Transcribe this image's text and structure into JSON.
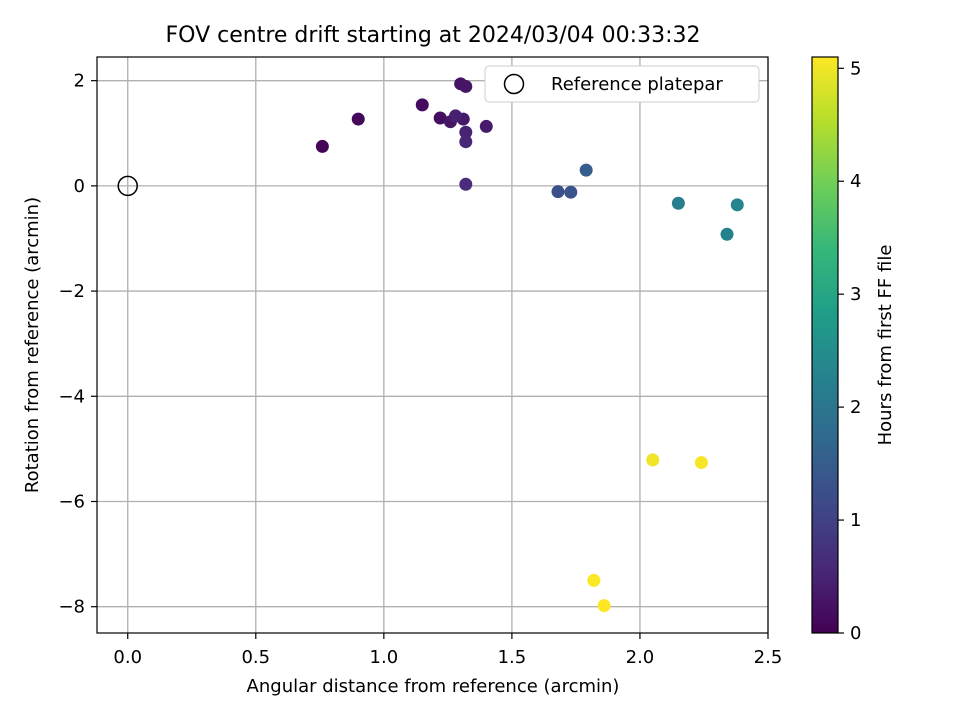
{
  "chart_data": {
    "type": "scatter",
    "title": "FOV centre drift starting at 2024/03/04 00:33:32",
    "xlabel": "Angular distance from reference (arcmin)",
    "ylabel": "Rotation from reference (arcmin)",
    "xlim": [
      -0.12,
      2.5
    ],
    "ylim": [
      -8.5,
      2.45
    ],
    "xticks": [
      0.0,
      0.5,
      1.0,
      1.5,
      2.0,
      2.5
    ],
    "xtick_labels": [
      "0.0",
      "0.5",
      "1.0",
      "1.5",
      "2.0",
      "2.5"
    ],
    "yticks": [
      2,
      0,
      -2,
      -4,
      -6,
      -8
    ],
    "ytick_labels": [
      "2",
      "0",
      "−2",
      "−4",
      "−6",
      "−8"
    ],
    "grid": true,
    "legend": {
      "placement": "top-right",
      "entries": [
        {
          "label": "Reference platepar",
          "marker": "open-circle"
        }
      ]
    },
    "reference_point": {
      "x": 0.0,
      "y": 0.0
    },
    "colorbar": {
      "label": "Hours from first FF file",
      "colormap": "viridis",
      "range": [
        0,
        5.1
      ],
      "ticks": [
        0,
        1,
        2,
        3,
        4,
        5
      ],
      "tick_labels": [
        "0",
        "1",
        "2",
        "3",
        "4",
        "5"
      ]
    },
    "points": [
      {
        "x": 0.76,
        "y": 0.75,
        "hours": 0.05
      },
      {
        "x": 0.9,
        "y": 1.27,
        "hours": 0.1
      },
      {
        "x": 1.15,
        "y": 1.54,
        "hours": 0.15
      },
      {
        "x": 1.22,
        "y": 1.29,
        "hours": 0.2
      },
      {
        "x": 1.3,
        "y": 1.94,
        "hours": 0.25
      },
      {
        "x": 1.32,
        "y": 1.89,
        "hours": 0.3
      },
      {
        "x": 1.26,
        "y": 1.22,
        "hours": 0.3
      },
      {
        "x": 1.31,
        "y": 1.27,
        "hours": 0.35
      },
      {
        "x": 1.4,
        "y": 1.13,
        "hours": 0.35
      },
      {
        "x": 1.28,
        "y": 1.33,
        "hours": 0.45
      },
      {
        "x": 1.32,
        "y": 1.02,
        "hours": 0.5
      },
      {
        "x": 1.32,
        "y": 0.84,
        "hours": 0.55
      },
      {
        "x": 1.32,
        "y": 0.03,
        "hours": 0.65
      },
      {
        "x": 1.68,
        "y": -0.11,
        "hours": 1.25
      },
      {
        "x": 1.73,
        "y": -0.12,
        "hours": 1.35
      },
      {
        "x": 1.79,
        "y": 0.3,
        "hours": 1.5
      },
      {
        "x": 2.15,
        "y": -0.33,
        "hours": 2.15
      },
      {
        "x": 2.34,
        "y": -0.92,
        "hours": 2.25
      },
      {
        "x": 2.38,
        "y": -0.36,
        "hours": 2.3
      },
      {
        "x": 2.05,
        "y": -5.21,
        "hours": 5.0
      },
      {
        "x": 2.24,
        "y": -5.26,
        "hours": 5.05
      },
      {
        "x": 1.82,
        "y": -7.5,
        "hours": 5.08
      },
      {
        "x": 1.86,
        "y": -7.98,
        "hours": 5.1
      }
    ]
  }
}
